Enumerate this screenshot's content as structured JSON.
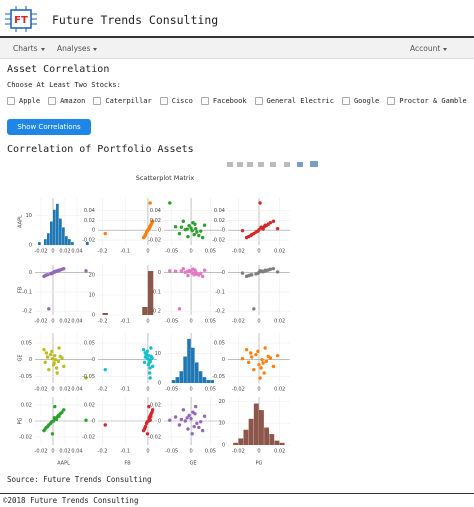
{
  "header": {
    "logo_text": "FT",
    "title": "Future Trends Consulting"
  },
  "nav": {
    "items": [
      "Charts",
      "Analyses"
    ],
    "account": "Account"
  },
  "form": {
    "title": "Asset Correlation",
    "prompt": "Choose At Least Two Stocks:",
    "options": [
      "Apple",
      "Amazon",
      "Caterpillar",
      "Cisco",
      "Facebook",
      "General Electric",
      "Google",
      "Proctor & Gamble"
    ],
    "button": "Show Correlations"
  },
  "section_title": "Correlation of Portfolio Assets",
  "chart_data": {
    "type": "scatter_matrix",
    "title": "Scatterplot Matrix",
    "assets": [
      {
        "name": "AAPL",
        "lim": [
          -0.03,
          0.065
        ],
        "ticks": [
          -0.02,
          0,
          0.02,
          0.04
        ],
        "returns": [
          0.002,
          -0.011,
          0.015,
          0.006,
          -0.004,
          0.009,
          -0.015,
          0.001,
          0.012,
          -0.007,
          0.004,
          -0.002,
          0.018,
          -0.009,
          0.007,
          0.003,
          -0.013,
          0.01,
          -0.001,
          0.055
        ]
      },
      {
        "name": "FB",
        "lim": [
          -0.22,
          0.04
        ],
        "ticks": [
          -0.2,
          -0.1,
          0
        ],
        "returns": [
          0.005,
          -0.012,
          0.018,
          0.009,
          -0.006,
          0.011,
          -0.019,
          0.002,
          0.014,
          -0.188,
          0.006,
          -0.003,
          0.021,
          -0.011,
          0.008,
          0.004,
          -0.015,
          0.013,
          -0.002,
          0.01
        ]
      },
      {
        "name": "GE",
        "lim": [
          -0.07,
          0.08
        ],
        "ticks": [
          -0.05,
          0,
          0.05
        ],
        "returns": [
          -0.01,
          0.02,
          0.005,
          -0.025,
          0.015,
          -0.005,
          0.03,
          -0.015,
          0.01,
          -0.03,
          0.0,
          0.025,
          -0.02,
          0.008,
          -0.04,
          0.012,
          -0.008,
          0.035,
          0.003,
          -0.055
        ]
      },
      {
        "name": "PG",
        "lim": [
          -0.03,
          0.03
        ],
        "ticks": [
          -0.02,
          0,
          0.02
        ],
        "returns": [
          0.004,
          -0.008,
          0.011,
          0.002,
          -0.003,
          0.007,
          -0.012,
          0.0,
          0.009,
          -0.005,
          0.003,
          -0.001,
          0.014,
          -0.007,
          0.005,
          0.018,
          -0.01,
          0.006,
          -0.016,
          0.001
        ]
      }
    ],
    "histograms": [
      {
        "bins": [
          -0.025,
          -0.02,
          -0.015,
          -0.01,
          -0.005,
          0,
          0.005,
          0.01,
          0.015,
          0.02,
          0.025,
          0.03,
          0.035,
          0.04,
          0.045,
          0.05,
          0.055,
          0.06
        ],
        "counts": [
          1,
          0,
          2,
          4,
          8,
          12,
          14,
          9,
          6,
          3,
          2,
          1,
          0,
          0,
          0,
          0,
          1
        ],
        "ylim": [
          0,
          16
        ],
        "yticks": [
          0,
          10
        ]
      },
      {
        "bins": [
          -0.2,
          -0.175,
          -0.15,
          -0.125,
          -0.1,
          -0.075,
          -0.05,
          -0.025,
          0,
          0.025
        ],
        "counts": [
          1,
          0,
          0,
          0,
          0,
          0,
          0,
          4,
          22
        ],
        "ylim": [
          0,
          25
        ],
        "yticks": [
          0,
          10,
          20
        ]
      },
      {
        "bins": [
          -0.05,
          -0.04,
          -0.03,
          -0.02,
          -0.01,
          0,
          0.01,
          0.02,
          0.03,
          0.04,
          0.05,
          0.06
        ],
        "counts": [
          1,
          2,
          4,
          9,
          15,
          12,
          7,
          4,
          2,
          1,
          1
        ],
        "ylim": [
          0,
          17
        ],
        "yticks": [
          0,
          10
        ]
      },
      {
        "bins": [
          -0.025,
          -0.02,
          -0.015,
          -0.01,
          -0.005,
          0,
          0.005,
          0.01,
          0.015,
          0.02,
          0.025
        ],
        "counts": [
          1,
          3,
          7,
          12,
          19,
          16,
          8,
          5,
          2,
          1
        ],
        "ylim": [
          0,
          22
        ],
        "yticks": [
          0,
          10,
          20
        ]
      }
    ],
    "panel_colors": [
      [
        "#1f77b4",
        "#ff7f0e",
        "#2ca02c",
        "#d62728"
      ],
      [
        "#9467bd",
        "#8c564b",
        "#e377c2",
        "#7f7f7f"
      ],
      [
        "#bcbd22",
        "#17becf",
        "#1f77b4",
        "#ff7f0e"
      ],
      [
        "#2ca02c",
        "#d62728",
        "#9467bd",
        "#8c564b"
      ]
    ]
  },
  "source": "Source: Future Trends Consulting",
  "footer": "©2018 Future Trends Consulting"
}
